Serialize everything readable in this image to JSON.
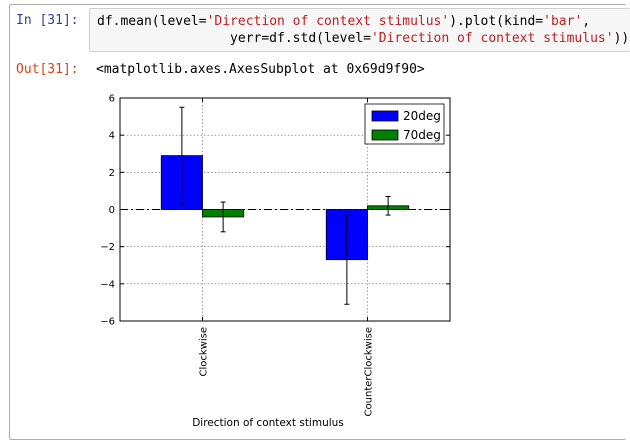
{
  "cell": {
    "in_prompt": "In [31]:",
    "out_prompt": "Out[31]:",
    "code_line1": [
      {
        "t": "df.mean(level=",
        "c": ""
      },
      {
        "t": "'Direction of context stimulus'",
        "c": "s"
      },
      {
        "t": ").plot(kind=",
        "c": ""
      },
      {
        "t": "'bar'",
        "c": "s"
      },
      {
        "t": ",",
        "c": ""
      }
    ],
    "code_line2": [
      {
        "t": "                 yerr=df.std(level=",
        "c": ""
      },
      {
        "t": "'Direction of context stimulus'",
        "c": "s"
      },
      {
        "t": "))",
        "c": ""
      }
    ],
    "output_text": "<matplotlib.axes.AxesSubplot at 0x69d9f90>"
  },
  "colors": {
    "string": "#ba2121",
    "in_prompt": "#303f9f",
    "out_prompt": "#d84315"
  },
  "chart_data": {
    "type": "bar",
    "categories": [
      "Clockwise",
      "CounterClockwise"
    ],
    "series": [
      {
        "name": "20deg",
        "color": "#0000ff",
        "values": [
          2.9,
          -2.7
        ],
        "errors": [
          2.6,
          2.4
        ]
      },
      {
        "name": "70deg",
        "color": "#008000",
        "values": [
          -0.4,
          0.2
        ],
        "errors": [
          0.8,
          0.5
        ]
      }
    ],
    "xlabel": "Direction of context stimulus",
    "ylabel": "",
    "ylim": [
      -6,
      6
    ],
    "yticks": [
      -6,
      -4,
      -2,
      0,
      2,
      4,
      6
    ],
    "ytick_labels": [
      "−6",
      "−4",
      "−2",
      "0",
      "2",
      "4",
      "6"
    ],
    "grid": true,
    "zero_line": "dash-dot",
    "legend": "top-right"
  }
}
